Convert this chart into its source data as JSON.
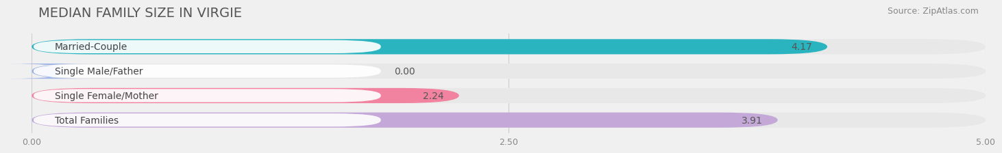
{
  "title": "MEDIAN FAMILY SIZE IN VIRGIE",
  "source": "Source: ZipAtlas.com",
  "categories": [
    "Married-Couple",
    "Single Male/Father",
    "Single Female/Mother",
    "Total Families"
  ],
  "values": [
    4.17,
    0.0,
    2.24,
    3.91
  ],
  "bar_colors": [
    "#29b4bf",
    "#9db3e8",
    "#f283a0",
    "#c3a8d8"
  ],
  "xlim": [
    0,
    5.0
  ],
  "xticks": [
    0.0,
    2.5,
    5.0
  ],
  "xtick_labels": [
    "0.00",
    "2.50",
    "5.00"
  ],
  "background_color": "#f0f0f0",
  "bar_background_color": "#e8e8e8",
  "title_fontsize": 14,
  "source_fontsize": 9,
  "label_fontsize": 10,
  "value_fontsize": 10
}
